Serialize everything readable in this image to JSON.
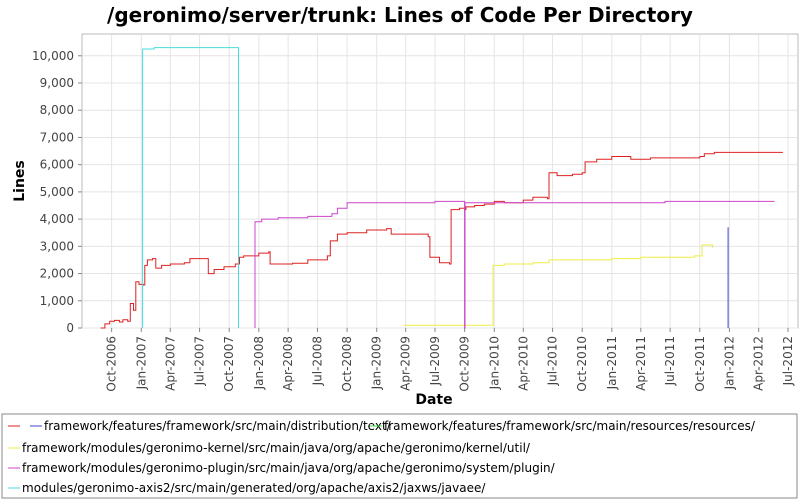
{
  "chart_data": {
    "type": "line",
    "title": "/geronimo/server/trunk: Lines of Code Per Directory",
    "xlabel": "Date",
    "ylabel": "Lines",
    "x_axis_type": "date",
    "xlim": [
      "2006-07-01",
      "2012-08-01"
    ],
    "ylim": [
      0,
      10800
    ],
    "yticks": [
      0,
      1000,
      2000,
      3000,
      4000,
      5000,
      6000,
      7000,
      8000,
      9000,
      10000
    ],
    "ytick_labels": [
      "0",
      "1,000",
      "2,000",
      "3,000",
      "4,000",
      "5,000",
      "6,000",
      "7,000",
      "8,000",
      "9,000",
      "10,000"
    ],
    "xticks": [
      "2006-10-01",
      "2007-01-01",
      "2007-04-01",
      "2007-07-01",
      "2007-10-01",
      "2008-01-01",
      "2008-04-01",
      "2008-07-01",
      "2008-10-01",
      "2009-01-01",
      "2009-04-01",
      "2009-07-01",
      "2009-10-01",
      "2010-01-01",
      "2010-04-01",
      "2010-07-01",
      "2010-10-01",
      "2011-01-01",
      "2011-04-01",
      "2011-07-01",
      "2011-10-01",
      "2012-01-01",
      "2012-04-01",
      "2012-07-01"
    ],
    "xtick_labels": [
      "Oct-2006",
      "Jan-2007",
      "Apr-2007",
      "Jul-2007",
      "Oct-2007",
      "Jan-2008",
      "Apr-2008",
      "Jul-2008",
      "Oct-2008",
      "Jan-2009",
      "Apr-2009",
      "Jul-2009",
      "Oct-2009",
      "Jan-2010",
      "Apr-2010",
      "Jul-2010",
      "Oct-2010",
      "Jan-2011",
      "Apr-2011",
      "Jul-2011",
      "Oct-2011",
      "Jan-2012",
      "Apr-2012",
      "Jul-2012"
    ],
    "grid": true,
    "legend_position": "bottom",
    "series": [
      {
        "name": "",
        "color": "#dd2222",
        "points": [
          [
            "2006-08-28",
            0
          ],
          [
            "2006-09-10",
            150
          ],
          [
            "2006-09-25",
            250
          ],
          [
            "2006-10-10",
            280
          ],
          [
            "2006-10-25",
            220
          ],
          [
            "2006-11-05",
            300
          ],
          [
            "2006-11-20",
            250
          ],
          [
            "2006-11-28",
            900
          ],
          [
            "2006-12-08",
            650
          ],
          [
            "2006-12-15",
            1700
          ],
          [
            "2006-12-25",
            1600
          ],
          [
            "2007-01-08",
            1580
          ],
          [
            "2007-01-12",
            2300
          ],
          [
            "2007-01-20",
            2500
          ],
          [
            "2007-02-05",
            2550
          ],
          [
            "2007-02-15",
            2200
          ],
          [
            "2007-03-05",
            2300
          ],
          [
            "2007-04-01",
            2350
          ],
          [
            "2007-05-15",
            2400
          ],
          [
            "2007-06-01",
            2550
          ],
          [
            "2007-07-20",
            2550
          ],
          [
            "2007-07-28",
            2000
          ],
          [
            "2007-08-15",
            2150
          ],
          [
            "2007-09-15",
            2250
          ],
          [
            "2007-10-20",
            2350
          ],
          [
            "2007-11-02",
            2600
          ],
          [
            "2007-11-15",
            2650
          ],
          [
            "2008-01-01",
            2750
          ],
          [
            "2008-02-01",
            2800
          ],
          [
            "2008-02-05",
            2350
          ],
          [
            "2008-04-15",
            2380
          ],
          [
            "2008-06-01",
            2500
          ],
          [
            "2008-08-01",
            2650
          ],
          [
            "2008-08-10",
            3200
          ],
          [
            "2008-09-01",
            3450
          ],
          [
            "2008-10-01",
            3500
          ],
          [
            "2008-12-01",
            3600
          ],
          [
            "2009-02-01",
            3650
          ],
          [
            "2009-02-15",
            3450
          ],
          [
            "2009-05-15",
            3450
          ],
          [
            "2009-06-10",
            3350
          ],
          [
            "2009-06-15",
            2600
          ],
          [
            "2009-07-15",
            2400
          ],
          [
            "2009-08-15",
            2350
          ],
          [
            "2009-08-20",
            4350
          ],
          [
            "2009-09-15",
            4400
          ],
          [
            "2009-10-01",
            4350
          ],
          [
            "2009-10-05",
            4450
          ],
          [
            "2009-11-01",
            4500
          ],
          [
            "2009-12-01",
            4550
          ],
          [
            "2010-01-01",
            4650
          ],
          [
            "2010-02-01",
            4600
          ],
          [
            "2010-04-01",
            4700
          ],
          [
            "2010-05-01",
            4800
          ],
          [
            "2010-06-15",
            4750
          ],
          [
            "2010-06-20",
            5700
          ],
          [
            "2010-07-15",
            5600
          ],
          [
            "2010-09-01",
            5650
          ],
          [
            "2010-10-01",
            5700
          ],
          [
            "2010-10-10",
            6100
          ],
          [
            "2010-11-15",
            6200
          ],
          [
            "2011-01-01",
            6300
          ],
          [
            "2011-03-01",
            6200
          ],
          [
            "2011-05-01",
            6250
          ],
          [
            "2011-07-01",
            6250
          ],
          [
            "2011-09-01",
            6250
          ],
          [
            "2011-10-01",
            6300
          ],
          [
            "2011-10-15",
            6400
          ],
          [
            "2011-11-15",
            6450
          ],
          [
            "2012-06-15",
            6450
          ]
        ]
      },
      {
        "name": "framework/features/framework/src/main/distribution/text/",
        "color": "#4444cc",
        "points": [
          [
            "2011-12-28",
            0
          ],
          [
            "2011-12-28",
            3700
          ]
        ]
      },
      {
        "name": "framework/features/framework/src/main/resources/resources/",
        "color": "#44dd44",
        "points": []
      },
      {
        "name": "framework/modules/geronimo-kernel/src/main/java/org/apache/geronimo/kernel/util/",
        "color": "#eeee44",
        "points": [
          [
            "2009-03-25",
            100
          ],
          [
            "2009-12-25",
            100
          ],
          [
            "2009-12-28",
            2300
          ],
          [
            "2010-02-01",
            2350
          ],
          [
            "2010-05-01",
            2400
          ],
          [
            "2010-06-20",
            2500
          ],
          [
            "2011-01-01",
            2550
          ],
          [
            "2011-04-01",
            2600
          ],
          [
            "2011-09-15",
            2650
          ],
          [
            "2011-10-08",
            3050
          ],
          [
            "2011-11-10",
            3050
          ],
          [
            "2011-11-10",
            2950
          ]
        ]
      },
      {
        "name": "framework/modules/geronimo-plugin/src/main/java/org/apache/geronimo/system/plugin/",
        "color": "#cc44cc",
        "points": [
          [
            "2007-12-20",
            0
          ],
          [
            "2007-12-20",
            3900
          ],
          [
            "2008-01-10",
            4000
          ],
          [
            "2008-03-01",
            4050
          ],
          [
            "2008-06-01",
            4100
          ],
          [
            "2008-08-15",
            4200
          ],
          [
            "2008-09-01",
            4400
          ],
          [
            "2008-10-01",
            4600
          ],
          [
            "2009-01-01",
            4600
          ],
          [
            "2009-07-01",
            4650
          ],
          [
            "2009-10-01",
            4650
          ],
          [
            "2009-10-01",
            0
          ],
          [
            "2009-10-02",
            4600
          ],
          [
            "2010-01-01",
            4600
          ],
          [
            "2011-06-01",
            4600
          ],
          [
            "2011-06-15",
            4650
          ],
          [
            "2012-05-20",
            4650
          ]
        ]
      },
      {
        "name": "modules/geronimo-axis2/src/main/generated/org/apache/axis2/jaxws/javaee/",
        "color": "#44dddd",
        "points": [
          [
            "2007-01-05",
            0
          ],
          [
            "2007-01-05",
            10250
          ],
          [
            "2007-02-10",
            10300
          ],
          [
            "2007-10-30",
            10300
          ],
          [
            "2007-10-30",
            0
          ]
        ]
      }
    ]
  }
}
